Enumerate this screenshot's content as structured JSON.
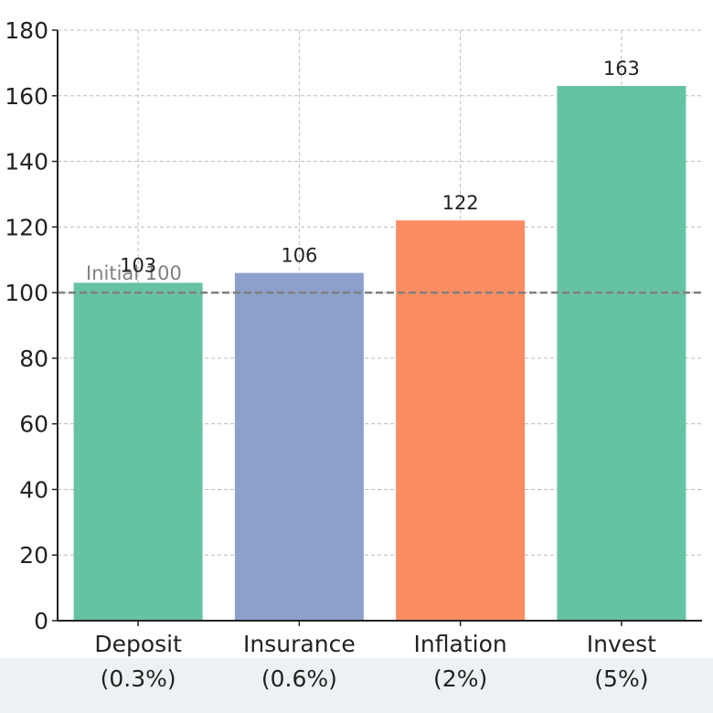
{
  "chart_data": {
    "type": "bar",
    "title": "",
    "xlabel": "",
    "ylabel": "",
    "categories": [
      "Deposit\n(0.3%)",
      "Insurance\n(0.6%)",
      "Inflation\n(2%)",
      "Invest\n(5%)"
    ],
    "values": [
      103,
      106,
      122,
      163
    ],
    "value_labels": [
      "103",
      "106",
      "122",
      "163"
    ],
    "colors": [
      "#66c2a5",
      "#8da0cb",
      "#fc8d62",
      "#66c2a5"
    ],
    "ylim": [
      0,
      180
    ],
    "yticks": [
      0,
      20,
      40,
      60,
      80,
      100,
      120,
      140,
      160,
      180
    ],
    "grid": true,
    "reference_line": {
      "value": 100,
      "label": "Initial 100",
      "color": "#808080",
      "style": "dashed"
    }
  }
}
